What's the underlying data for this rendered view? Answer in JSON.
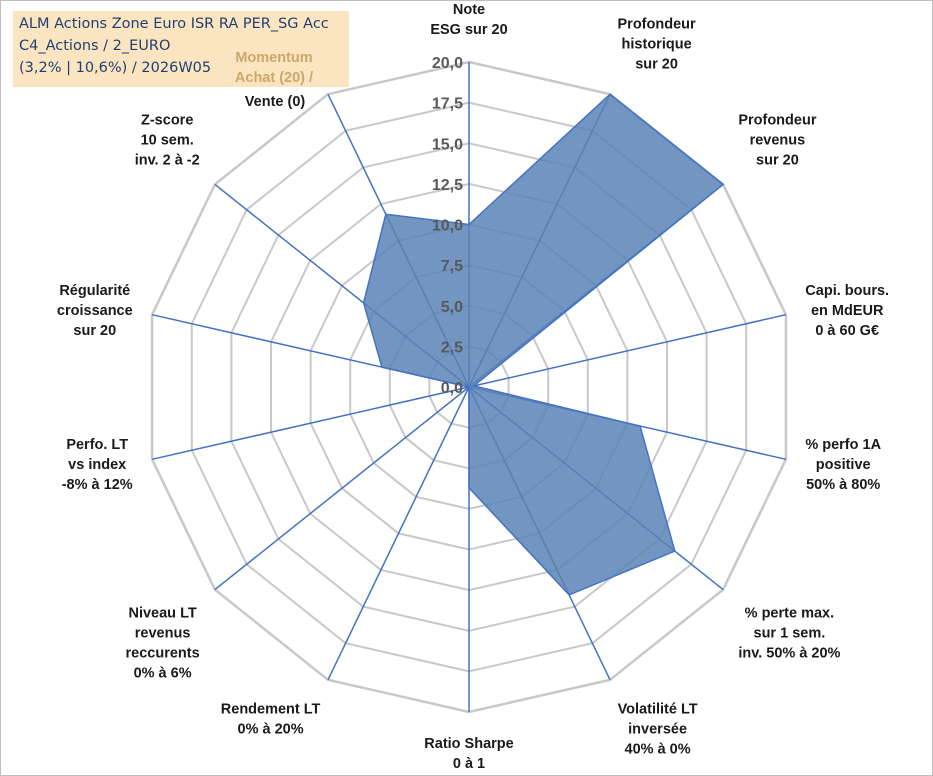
{
  "info": {
    "line1": "ALM Actions Zone Euro ISR RA PER_SG Acc",
    "line2": "C4_Actions / 2_EURO",
    "line3": "(3,2% | 10,6%) / 2026W05",
    "momentum_line1": "Momentum",
    "momentum_line2": "Achat (20) /",
    "momentum_line3": "Vente (0)"
  },
  "colors": {
    "fill": "#5b82b6",
    "stroke": "#4472c4",
    "grid": "#c8c8c8",
    "spoke": "#4472c4",
    "info_bg": "#fbe5c0"
  },
  "chart_data": {
    "type": "radar",
    "rmax": 20,
    "ticks": [
      "0,0",
      "2,5",
      "5,0",
      "7,5",
      "10,0",
      "12,5",
      "15,0",
      "17,5",
      "20,0"
    ],
    "categories": [
      [
        "Note",
        "ESG sur 20"
      ],
      [
        "Profondeur",
        "historique",
        "sur 20"
      ],
      [
        "Profondeur",
        "revenus",
        "sur 20"
      ],
      [
        "Capi. bours.",
        "en MdEUR",
        "0 à 60 G€"
      ],
      [
        "% perfo 1A",
        "positive",
        "50% à 80%"
      ],
      [
        "% perte max.",
        "sur 1 sem.",
        "inv. 50% à 20%"
      ],
      [
        "Volatilité LT",
        "inversée",
        "40% à 0%"
      ],
      [
        "Ratio Sharpe",
        "0 à 1"
      ],
      [
        "Rendement LT",
        "0% à 20%"
      ],
      [
        "Niveau LT",
        "revenus",
        "reccurents",
        "0% à 6%"
      ],
      [
        "Perfo. LT",
        "vs index",
        "-8% à 12%"
      ],
      [
        "Régularité",
        "croissance",
        "sur 20"
      ],
      [
        "Z-score",
        "10 sem.",
        "inv. 2 à -2"
      ],
      [
        "Momentum",
        "Achat (20) /",
        "Vente (0)"
      ]
    ],
    "series": [
      {
        "values": [
          10.0,
          20.0,
          20.0,
          0.3,
          10.8,
          16.2,
          14.2,
          6.2,
          0.0,
          0.0,
          0.0,
          5.5,
          8.3,
          11.8
        ]
      }
    ],
    "grid": true
  }
}
